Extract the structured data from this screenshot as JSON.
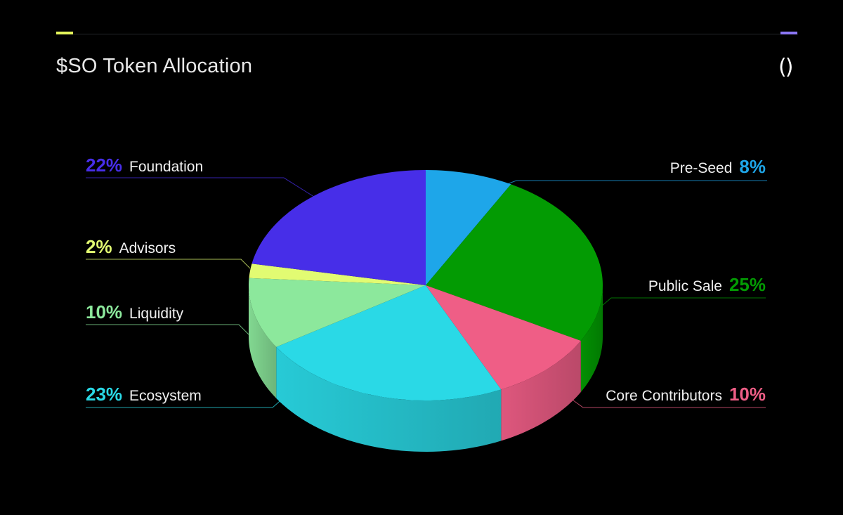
{
  "header": {
    "title": "$SO Token Allocation",
    "logo_text": "()",
    "accent_left_color": "#e4f55b",
    "accent_right_color": "#8b76f5"
  },
  "chart_data": {
    "type": "pie",
    "title": "$SO Token Allocation",
    "unit": "%",
    "slices": [
      {
        "label": "Pre-Seed",
        "value": 8,
        "pct_label": "8%",
        "color": "#1ea6e9"
      },
      {
        "label": "Public Sale",
        "value": 25,
        "pct_label": "25%",
        "color": "#039b03"
      },
      {
        "label": "Core Contributors",
        "value": 10,
        "pct_label": "10%",
        "color": "#ef5e86"
      },
      {
        "label": "Ecosystem",
        "value": 23,
        "pct_label": "23%",
        "color": "#2ad9e6"
      },
      {
        "label": "Liquidity",
        "value": 10,
        "pct_label": "10%",
        "color": "#8ce89c"
      },
      {
        "label": "Advisors",
        "value": 2,
        "pct_label": "2%",
        "color": "#e2fb72"
      },
      {
        "label": "Foundation",
        "value": 22,
        "pct_label": "22%",
        "color": "#472ee8"
      }
    ]
  }
}
